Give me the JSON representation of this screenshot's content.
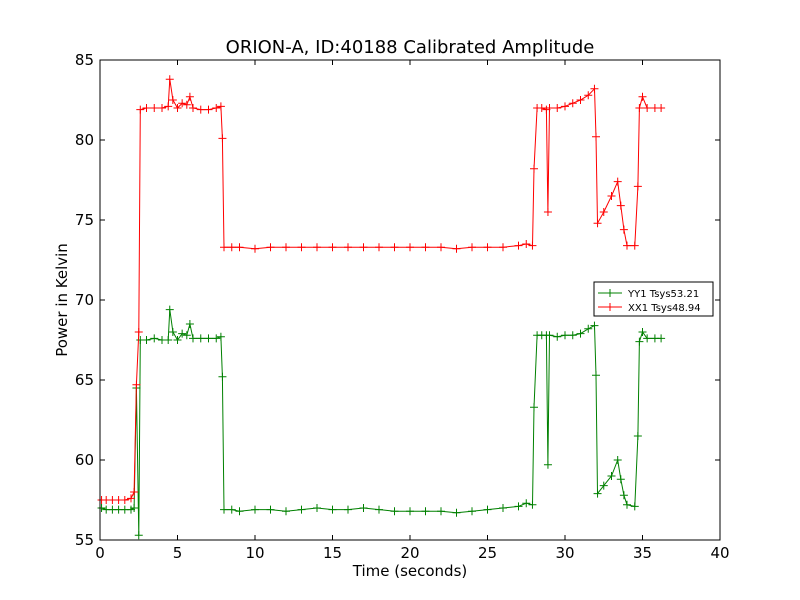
{
  "chart_data": {
    "type": "line",
    "title": "ORION-A, ID:40188 Calibrated Amplitude",
    "xlabel": "Time (seconds)",
    "ylabel": "Power in Kelvin",
    "xlim": [
      0,
      40
    ],
    "ylim": [
      55,
      85
    ],
    "xticks": [
      0,
      5,
      10,
      15,
      20,
      25,
      30,
      35,
      40
    ],
    "yticks": [
      55,
      60,
      65,
      70,
      75,
      80,
      85
    ],
    "grid": false,
    "legend": "center-right",
    "series": [
      {
        "name": "YY1 Tsys53.21",
        "color": "#008000",
        "marker": "+",
        "points": [
          [
            0.1,
            57.0
          ],
          [
            0.4,
            56.9
          ],
          [
            0.8,
            56.9
          ],
          [
            1.2,
            56.9
          ],
          [
            1.6,
            56.9
          ],
          [
            2.0,
            56.9
          ],
          [
            2.2,
            57.0
          ],
          [
            2.35,
            64.5
          ],
          [
            2.5,
            55.3
          ],
          [
            2.6,
            67.5
          ],
          [
            3.0,
            67.5
          ],
          [
            3.5,
            67.6
          ],
          [
            4.0,
            67.5
          ],
          [
            4.4,
            67.5
          ],
          [
            4.5,
            69.4
          ],
          [
            4.7,
            68.0
          ],
          [
            5.0,
            67.5
          ],
          [
            5.3,
            67.9
          ],
          [
            5.6,
            67.8
          ],
          [
            5.8,
            68.5
          ],
          [
            6.0,
            67.6
          ],
          [
            6.5,
            67.6
          ],
          [
            7.0,
            67.6
          ],
          [
            7.5,
            67.6
          ],
          [
            7.8,
            67.7
          ],
          [
            7.9,
            65.2
          ],
          [
            8.0,
            56.9
          ],
          [
            8.5,
            56.9
          ],
          [
            9.0,
            56.8
          ],
          [
            10.0,
            56.9
          ],
          [
            11.0,
            56.9
          ],
          [
            12.0,
            56.8
          ],
          [
            13.0,
            56.9
          ],
          [
            14.0,
            57.0
          ],
          [
            15.0,
            56.9
          ],
          [
            16.0,
            56.9
          ],
          [
            17.0,
            57.0
          ],
          [
            18.0,
            56.9
          ],
          [
            19.0,
            56.8
          ],
          [
            20.0,
            56.8
          ],
          [
            21.0,
            56.8
          ],
          [
            22.0,
            56.8
          ],
          [
            23.0,
            56.7
          ],
          [
            24.0,
            56.8
          ],
          [
            25.0,
            56.9
          ],
          [
            26.0,
            57.0
          ],
          [
            27.0,
            57.1
          ],
          [
            27.5,
            57.3
          ],
          [
            27.9,
            57.2
          ],
          [
            28.0,
            63.3
          ],
          [
            28.2,
            67.8
          ],
          [
            28.5,
            67.8
          ],
          [
            28.8,
            67.8
          ],
          [
            28.9,
            59.7
          ],
          [
            29.0,
            67.8
          ],
          [
            29.5,
            67.7
          ],
          [
            30.0,
            67.8
          ],
          [
            30.5,
            67.8
          ],
          [
            31.0,
            67.9
          ],
          [
            31.5,
            68.2
          ],
          [
            31.9,
            68.4
          ],
          [
            32.0,
            65.3
          ],
          [
            32.1,
            57.9
          ],
          [
            32.5,
            58.4
          ],
          [
            33.0,
            59.0
          ],
          [
            33.4,
            60.0
          ],
          [
            33.6,
            58.8
          ],
          [
            33.8,
            57.8
          ],
          [
            34.0,
            57.2
          ],
          [
            34.5,
            57.1
          ],
          [
            34.7,
            61.5
          ],
          [
            34.8,
            67.4
          ],
          [
            35.0,
            68.0
          ],
          [
            35.3,
            67.6
          ],
          [
            35.8,
            67.6
          ],
          [
            36.2,
            67.6
          ]
        ]
      },
      {
        "name": "XX1 Tsys48.94",
        "color": "#ff0000",
        "marker": "+",
        "points": [
          [
            0.1,
            57.5
          ],
          [
            0.4,
            57.5
          ],
          [
            0.8,
            57.5
          ],
          [
            1.2,
            57.5
          ],
          [
            1.6,
            57.5
          ],
          [
            2.0,
            57.6
          ],
          [
            2.2,
            58.0
          ],
          [
            2.35,
            64.7
          ],
          [
            2.5,
            68.0
          ],
          [
            2.6,
            81.9
          ],
          [
            3.0,
            82.0
          ],
          [
            3.5,
            82.0
          ],
          [
            4.0,
            82.0
          ],
          [
            4.4,
            82.1
          ],
          [
            4.5,
            83.8
          ],
          [
            4.7,
            82.5
          ],
          [
            5.0,
            82.0
          ],
          [
            5.3,
            82.3
          ],
          [
            5.6,
            82.2
          ],
          [
            5.8,
            82.7
          ],
          [
            6.0,
            82.0
          ],
          [
            6.5,
            81.9
          ],
          [
            7.0,
            81.9
          ],
          [
            7.5,
            82.0
          ],
          [
            7.8,
            82.1
          ],
          [
            7.9,
            80.1
          ],
          [
            8.0,
            73.3
          ],
          [
            8.5,
            73.3
          ],
          [
            9.0,
            73.3
          ],
          [
            10.0,
            73.2
          ],
          [
            11.0,
            73.3
          ],
          [
            12.0,
            73.3
          ],
          [
            13.0,
            73.3
          ],
          [
            14.0,
            73.3
          ],
          [
            15.0,
            73.3
          ],
          [
            16.0,
            73.3
          ],
          [
            17.0,
            73.3
          ],
          [
            18.0,
            73.3
          ],
          [
            19.0,
            73.3
          ],
          [
            20.0,
            73.3
          ],
          [
            21.0,
            73.3
          ],
          [
            22.0,
            73.3
          ],
          [
            23.0,
            73.2
          ],
          [
            24.0,
            73.3
          ],
          [
            25.0,
            73.3
          ],
          [
            26.0,
            73.3
          ],
          [
            27.0,
            73.4
          ],
          [
            27.5,
            73.5
          ],
          [
            27.9,
            73.4
          ],
          [
            28.0,
            78.2
          ],
          [
            28.2,
            82.0
          ],
          [
            28.5,
            82.0
          ],
          [
            28.8,
            81.9
          ],
          [
            28.9,
            75.5
          ],
          [
            29.0,
            82.0
          ],
          [
            29.5,
            82.0
          ],
          [
            30.0,
            82.1
          ],
          [
            30.5,
            82.3
          ],
          [
            31.0,
            82.5
          ],
          [
            31.5,
            82.8
          ],
          [
            31.9,
            83.2
          ],
          [
            32.0,
            80.2
          ],
          [
            32.1,
            74.8
          ],
          [
            32.5,
            75.5
          ],
          [
            33.0,
            76.5
          ],
          [
            33.4,
            77.4
          ],
          [
            33.6,
            75.9
          ],
          [
            33.8,
            74.4
          ],
          [
            34.0,
            73.4
          ],
          [
            34.5,
            73.4
          ],
          [
            34.7,
            77.1
          ],
          [
            34.8,
            82.0
          ],
          [
            35.0,
            82.7
          ],
          [
            35.3,
            82.0
          ],
          [
            35.8,
            82.0
          ],
          [
            36.2,
            82.0
          ]
        ]
      }
    ]
  }
}
